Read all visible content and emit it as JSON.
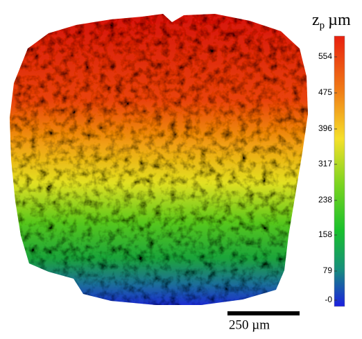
{
  "colorbar": {
    "label_main": "z",
    "label_sub": "p",
    "unit": "µm",
    "ticks": [
      "554",
      "475",
      "396",
      "317",
      "238",
      "158",
      "79",
      "-0"
    ]
  },
  "scale_bar": {
    "label": "250 µm"
  }
}
